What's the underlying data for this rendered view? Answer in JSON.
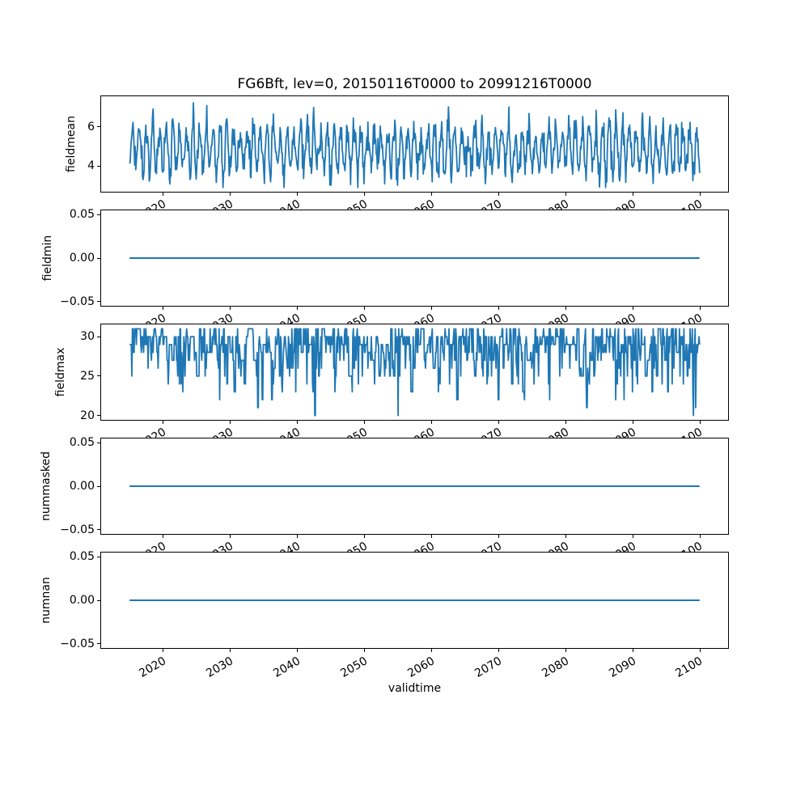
{
  "figure": {
    "background_color": "#ffffff",
    "axis_color": "#000000",
    "text_color": "#000000"
  },
  "chart_data": {
    "type": "line",
    "title": "FG6Bft, lev=0, 20150116T0000 to 20991216T0000",
    "xlabel": "validtime",
    "grid": false,
    "legend": null,
    "line_color": "#1f77b4",
    "x_start": 2015.0417,
    "x_end": 2099.9583,
    "n_points": 1020,
    "xlim": [
      2010.7958,
      2104.2042
    ],
    "xticks": [
      2020,
      2030,
      2040,
      2050,
      2060,
      2070,
      2080,
      2090,
      2100
    ],
    "xtick_labels": [
      "2020",
      "2030",
      "2040",
      "2050",
      "2060",
      "2070",
      "2080",
      "2090",
      "2100"
    ],
    "xtick_rotation_deg": 30,
    "subplots": [
      {
        "ylabel": "fieldmean",
        "yticks": [
          4,
          6
        ],
        "ytick_labels": [
          "4",
          "6"
        ],
        "ylim": [
          2.68,
          7.57
        ],
        "series": {
          "kind": "seasonal_noise",
          "mean": 4.85,
          "seasonal_amplitude": 1.05,
          "amplitude_jitter": 0.3,
          "noise_sigma": 0.42,
          "clip": [
            2.9,
            7.35
          ],
          "seed": 20150116
        }
      },
      {
        "ylabel": "fieldmin",
        "yticks": [
          -0.05,
          0.0,
          0.05
        ],
        "ytick_labels": [
          "−0.05",
          "0.00",
          "0.05"
        ],
        "ylim": [
          -0.055,
          0.055
        ],
        "series": {
          "kind": "constant",
          "value": 0.0
        }
      },
      {
        "ylabel": "fieldmax",
        "yticks": [
          20,
          25,
          30
        ],
        "ytick_labels": [
          "20",
          "25",
          "30"
        ],
        "ylim": [
          19.45,
          31.55
        ],
        "series": {
          "kind": "discrete_levels",
          "levels": [
            31,
            30,
            29,
            28,
            27,
            26,
            25,
            24,
            23,
            22,
            21,
            20
          ],
          "weights": [
            0.17,
            0.22,
            0.18,
            0.14,
            0.1,
            0.07,
            0.05,
            0.03,
            0.018,
            0.012,
            0.006,
            0.004
          ],
          "persistence": 0.3,
          "seed": 77
        }
      },
      {
        "ylabel": "nummasked",
        "yticks": [
          -0.05,
          0.0,
          0.05
        ],
        "ytick_labels": [
          "−0.05",
          "0.00",
          "0.05"
        ],
        "ylim": [
          -0.055,
          0.055
        ],
        "series": {
          "kind": "constant",
          "value": 0.0
        }
      },
      {
        "ylabel": "numnan",
        "yticks": [
          -0.05,
          0.0,
          0.05
        ],
        "ytick_labels": [
          "−0.05",
          "0.00",
          "0.05"
        ],
        "ylim": [
          -0.055,
          0.055
        ],
        "series": {
          "kind": "constant",
          "value": 0.0
        }
      }
    ]
  }
}
